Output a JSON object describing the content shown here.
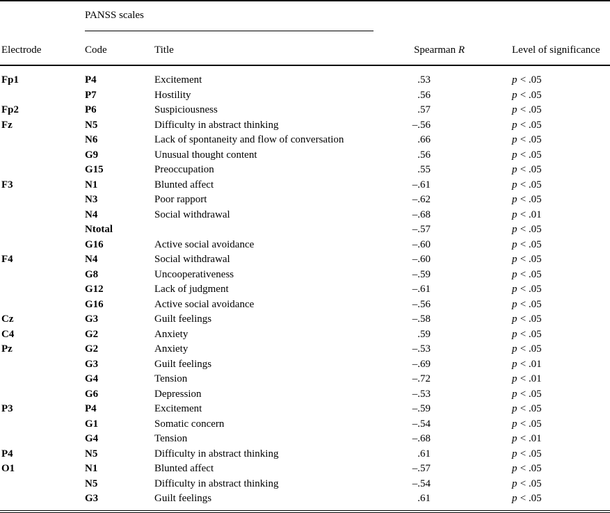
{
  "page": {
    "background": "#ffffff",
    "text_color": "#000000"
  },
  "table": {
    "group_header": "PANSS scales",
    "columns": {
      "electrode": "Electrode",
      "code": "Code",
      "title": "Title",
      "spearman_prefix": "Spearman",
      "spearman_r": "R",
      "significance": "Level of significance"
    },
    "p_label": "p",
    "rows": [
      {
        "electrode": "Fp1",
        "code": "P4",
        "title": "Excitement",
        "r": ".53",
        "sig": "< .05"
      },
      {
        "electrode": "",
        "code": "P7",
        "title": "Hostility",
        "r": ".56",
        "sig": "< .05"
      },
      {
        "electrode": "Fp2",
        "code": "P6",
        "title": "Suspiciousness",
        "r": ".57",
        "sig": "< .05"
      },
      {
        "electrode": "Fz",
        "code": "N5",
        "title": "Difficulty in abstract thinking",
        "r": "–.56",
        "sig": "< .05"
      },
      {
        "electrode": "",
        "code": "N6",
        "title": "Lack of spontaneity and flow of conversation",
        "r": ".66",
        "sig": "< .05"
      },
      {
        "electrode": "",
        "code": "G9",
        "title": "Unusual thought content",
        "r": ".56",
        "sig": "< .05"
      },
      {
        "electrode": "",
        "code": "G15",
        "title": "Preoccupation",
        "r": ".55",
        "sig": "< .05"
      },
      {
        "electrode": "F3",
        "code": "N1",
        "title": "Blunted affect",
        "r": "–.61",
        "sig": "< .05"
      },
      {
        "electrode": "",
        "code": "N3",
        "title": "Poor rapport",
        "r": "–.62",
        "sig": "< .05"
      },
      {
        "electrode": "",
        "code": "N4",
        "title": "Social withdrawal",
        "r": "–.68",
        "sig": "< .01"
      },
      {
        "electrode": "",
        "code": "Ntotal",
        "title": "",
        "r": "–.57",
        "sig": "< .05"
      },
      {
        "electrode": "",
        "code": "G16",
        "title": "Active social avoidance",
        "r": "–.60",
        "sig": "< .05"
      },
      {
        "electrode": "F4",
        "code": "N4",
        "title": "Social withdrawal",
        "r": "–.60",
        "sig": "< .05"
      },
      {
        "electrode": "",
        "code": "G8",
        "title": "Uncooperativeness",
        "r": "–.59",
        "sig": "< .05"
      },
      {
        "electrode": "",
        "code": "G12",
        "title": "Lack of judgment",
        "r": "–.61",
        "sig": "< .05"
      },
      {
        "electrode": "",
        "code": "G16",
        "title": "Active social avoidance",
        "r": "–.56",
        "sig": "< .05"
      },
      {
        "electrode": "Cz",
        "code": "G3",
        "title": "Guilt feelings",
        "r": "–.58",
        "sig": "< .05"
      },
      {
        "electrode": "C4",
        "code": "G2",
        "title": "Anxiety",
        "r": ".59",
        "sig": "< .05"
      },
      {
        "electrode": "Pz",
        "code": "G2",
        "title": "Anxiety",
        "r": "–.53",
        "sig": "< .05"
      },
      {
        "electrode": "",
        "code": "G3",
        "title": "Guilt feelings",
        "r": "–.69",
        "sig": "< .01"
      },
      {
        "electrode": "",
        "code": "G4",
        "title": "Tension",
        "r": "–.72",
        "sig": "< .01"
      },
      {
        "electrode": "",
        "code": "G6",
        "title": "Depression",
        "r": "–.53",
        "sig": "< .05"
      },
      {
        "electrode": "P3",
        "code": "P4",
        "title": "Excitement",
        "r": "–.59",
        "sig": "< .05"
      },
      {
        "electrode": "",
        "code": "G1",
        "title": "Somatic concern",
        "r": "–.54",
        "sig": "< .05"
      },
      {
        "electrode": "",
        "code": "G4",
        "title": "Tension",
        "r": "–.68",
        "sig": "< .01"
      },
      {
        "electrode": "P4",
        "code": "N5",
        "title": "Difficulty in abstract thinking",
        "r": ".61",
        "sig": "< .05"
      },
      {
        "electrode": "O1",
        "code": "N1",
        "title": "Blunted affect",
        "r": "–.57",
        "sig": "< .05"
      },
      {
        "electrode": "",
        "code": "N5",
        "title": "Difficulty in abstract thinking",
        "r": "–.54",
        "sig": "< .05"
      },
      {
        "electrode": "",
        "code": "G3",
        "title": "Guilt feelings",
        "r": ".61",
        "sig": "< .05"
      }
    ]
  }
}
